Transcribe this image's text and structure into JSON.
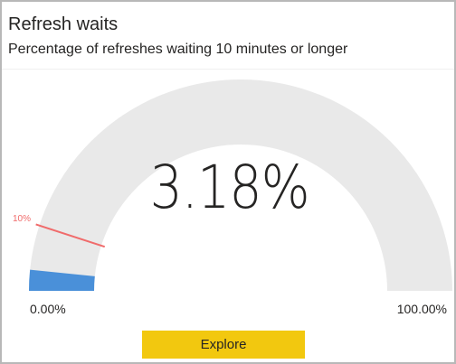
{
  "card": {
    "title": "Refresh waits",
    "subtitle": "Percentage of refreshes waiting 10 minutes or longer"
  },
  "chart_data": {
    "type": "gauge",
    "value": 3.18,
    "value_label": "3.18%",
    "min": 0,
    "max": 100,
    "min_label": "0.00%",
    "max_label": "100.00%",
    "target": 10,
    "target_label": "10%",
    "colors": {
      "track": "#e9e9e9",
      "fill": "#4a90d9",
      "target": "#f06b6b"
    }
  },
  "actions": {
    "explore_label": "Explore"
  }
}
